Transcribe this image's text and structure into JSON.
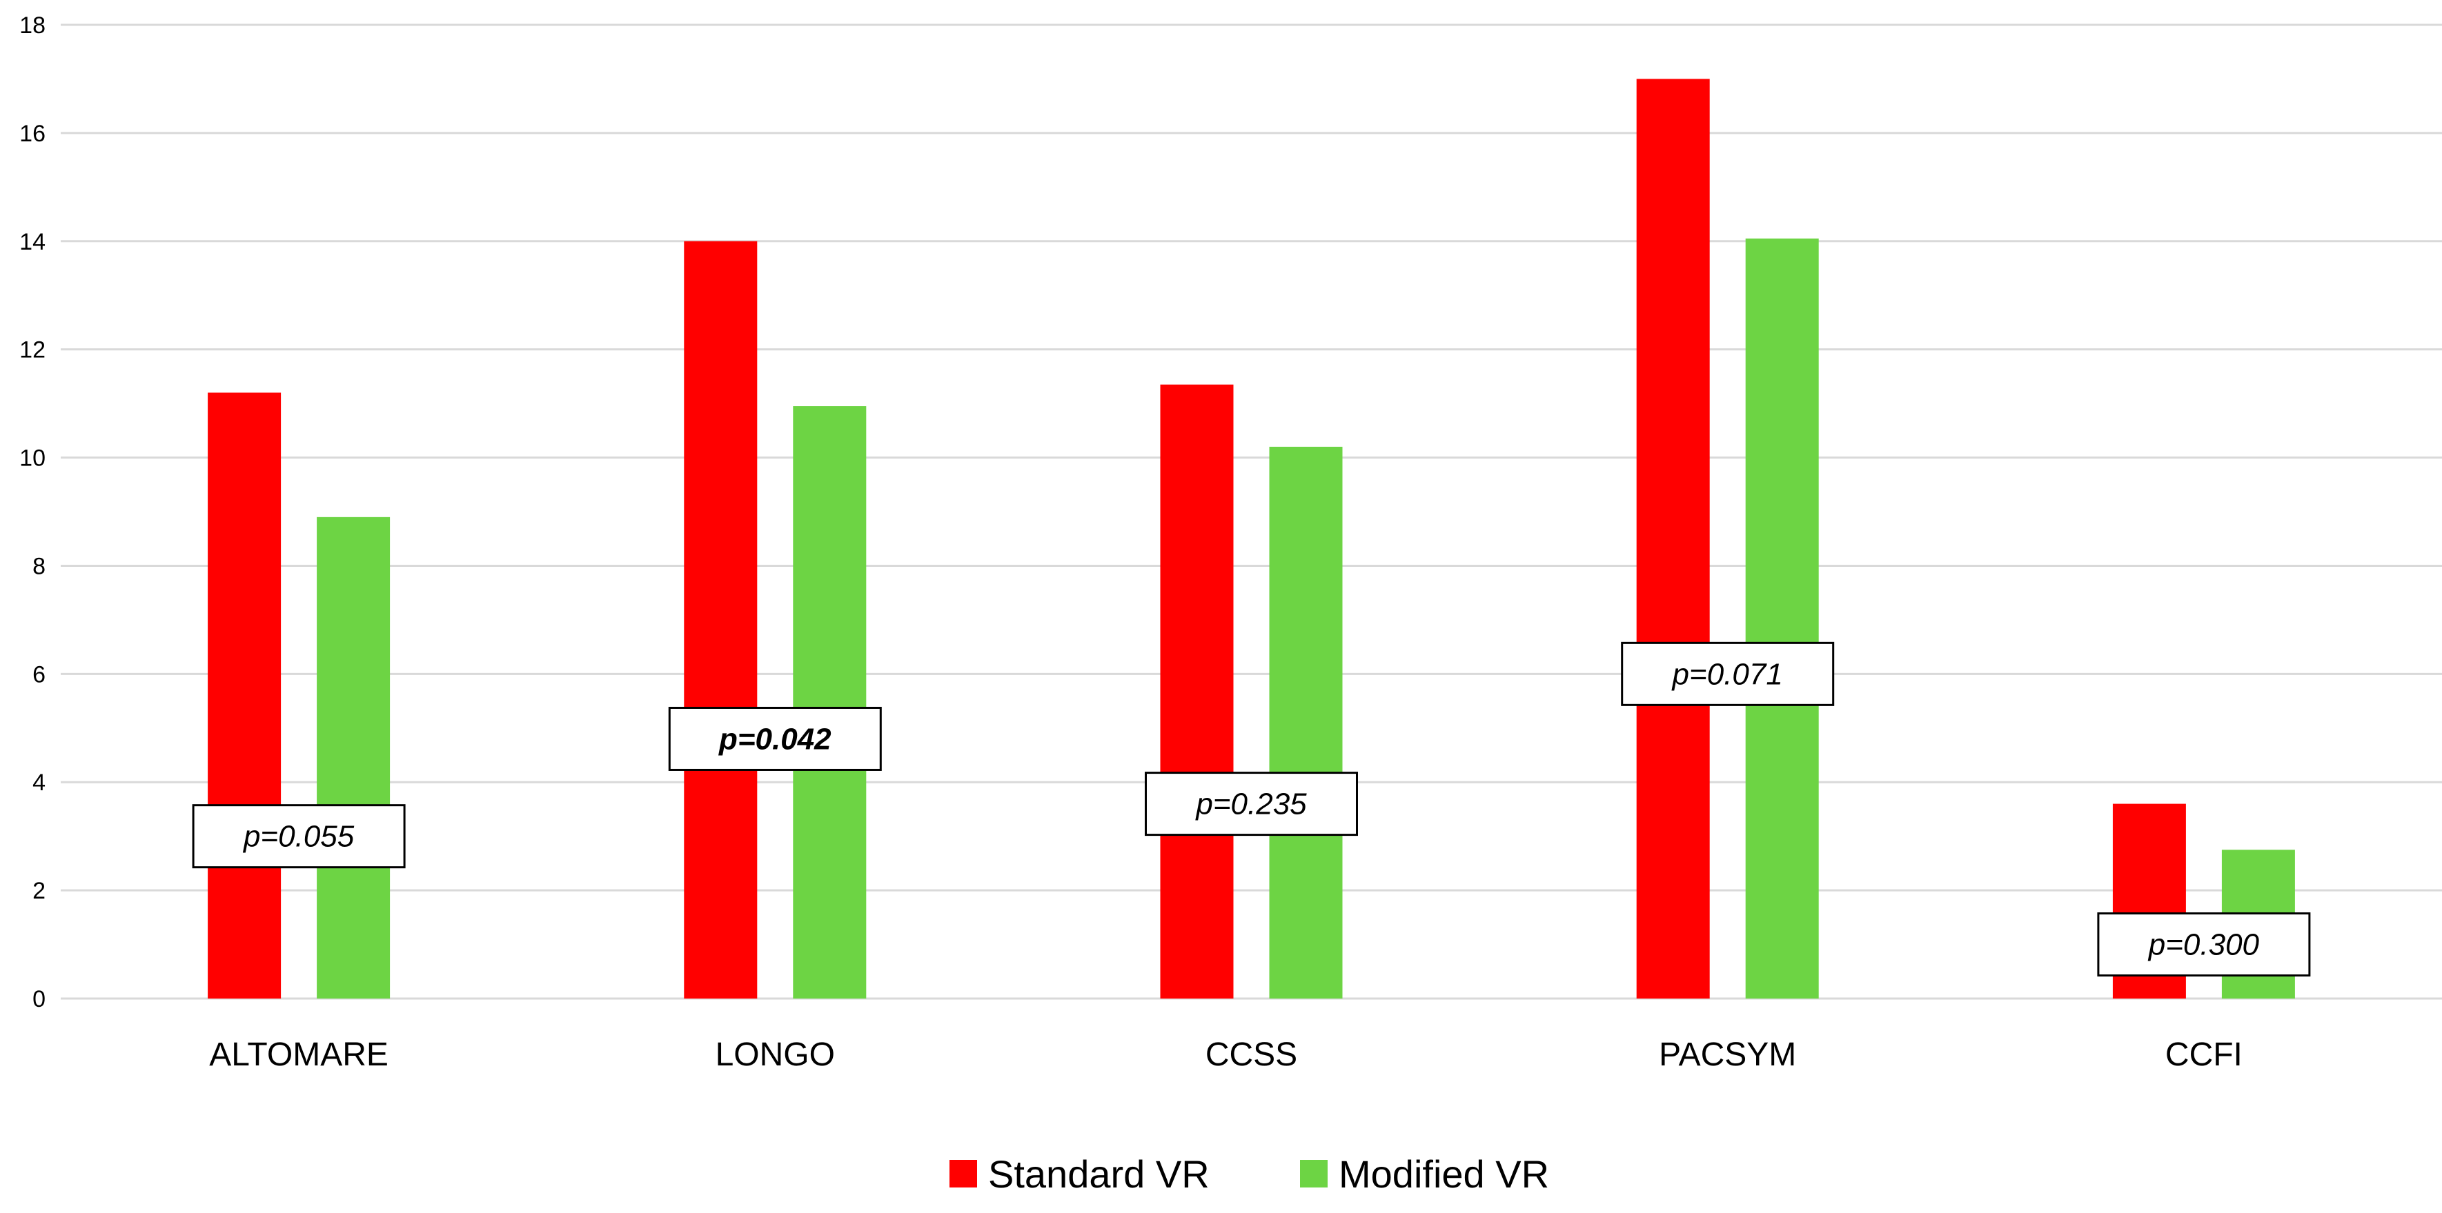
{
  "chart_data": {
    "type": "bar",
    "title": "",
    "xlabel": "",
    "ylabel": "",
    "ylim": [
      0,
      18
    ],
    "yticks": [
      "0",
      "2",
      "4",
      "6",
      "8",
      "10",
      "12",
      "14",
      "16",
      "18"
    ],
    "grid": true,
    "categories": [
      "ALTOMARE",
      "LONGO",
      "CCSS",
      "PACSYM",
      "CCFI"
    ],
    "series": [
      {
        "name": "Standard VR",
        "color": "#ff0000",
        "values": [
          11.2,
          14.0,
          11.35,
          17.0,
          3.6
        ]
      },
      {
        "name": "Modified VR",
        "color": "#6dd444",
        "values": [
          8.9,
          10.95,
          10.2,
          14.05,
          2.75
        ]
      }
    ],
    "annotations": [
      {
        "text": "p=0.055",
        "value": 3.0,
        "category": "ALTOMARE",
        "bold": false
      },
      {
        "text": "p=0.042",
        "value": 4.8,
        "category": "LONGO",
        "bold": true
      },
      {
        "text": "p=0.235",
        "value": 3.6,
        "category": "CCSS",
        "bold": false
      },
      {
        "text": "p=0.071",
        "value": 6.0,
        "category": "PACSYM",
        "bold": false
      },
      {
        "text": "p=0.300",
        "value": 1.0,
        "category": "CCFI",
        "bold": false
      }
    ],
    "legend": {
      "position": "bottom-center",
      "entries": [
        "Standard VR",
        "Modified VR"
      ]
    }
  }
}
